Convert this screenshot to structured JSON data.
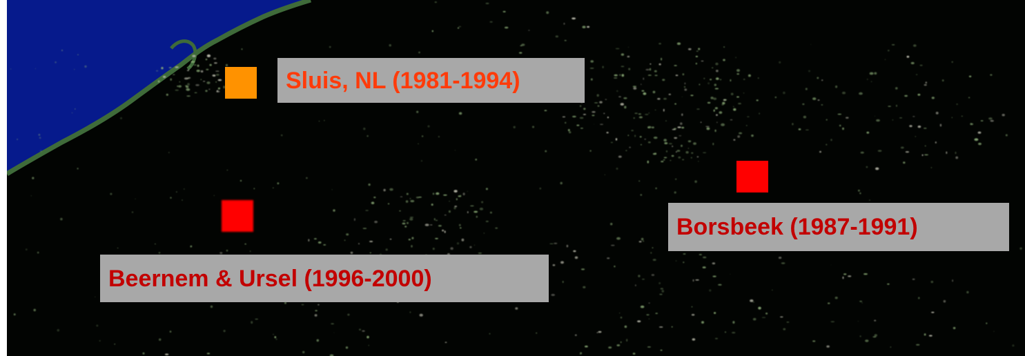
{
  "map": {
    "colors": {
      "sea": "#061a8c",
      "land": "#020402",
      "coast": "#3f6b3a",
      "vegetation": "#8fb07a",
      "label_box": "#a8a8a8"
    },
    "sites": [
      {
        "id": "sluis",
        "label": "Sluis, NL (1981-1994)",
        "marker_color": "#ff9200",
        "text_color": "#ff3b0a"
      },
      {
        "id": "beernem",
        "label": "Beernem & Ursel (1996-2000)",
        "marker_color": "#ff0000",
        "text_color": "#c20000"
      },
      {
        "id": "borsbeek",
        "label": "Borsbeek (1987-1991)",
        "marker_color": "#ff0000",
        "text_color": "#c20000"
      }
    ]
  }
}
